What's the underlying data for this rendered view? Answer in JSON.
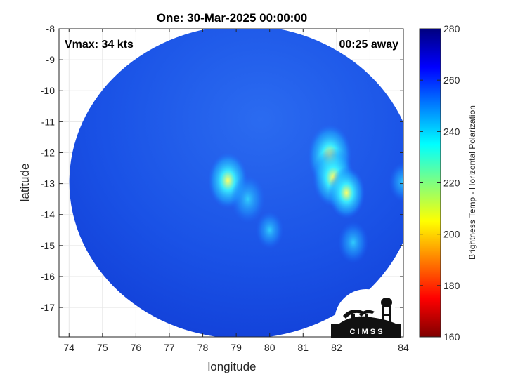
{
  "chart_data": {
    "type": "heatmap",
    "title": "One: 30-Mar-2025 00:00:00",
    "annotations": {
      "vmax": "Vmax: 34 kts",
      "time_away": "00:25 away"
    },
    "xlabel": "longitude",
    "ylabel": "latitude",
    "xlim": [
      73.7,
      84.0
    ],
    "ylim": [
      -17.95,
      -8.0
    ],
    "xticks": [
      "74",
      "75",
      "76",
      "77",
      "78",
      "79",
      "80",
      "81",
      "82",
      "83",
      "84"
    ],
    "yticks": [
      "-8",
      "-9",
      "-10",
      "-11",
      "-12",
      "-13",
      "-14",
      "-15",
      "-16",
      "-17"
    ],
    "grid": true,
    "colorbar": {
      "label": "Brightness Temp - Horizontal Polarization",
      "range": [
        160,
        280
      ],
      "ticks": [
        "160",
        "180",
        "200",
        "220",
        "240",
        "260",
        "280"
      ],
      "colormap": [
        "#7f0000",
        "#ff0000",
        "#ffff00",
        "#00ffff",
        "#0000ff",
        "#00007f"
      ]
    },
    "swath": {
      "center_lon": 79.2,
      "center_lat": -12.95,
      "background_value": 263
    },
    "cold_features": [
      {
        "lon": 78.75,
        "lat": -12.9,
        "value": 222
      },
      {
        "lon": 79.35,
        "lat": -13.5,
        "value": 234
      },
      {
        "lon": 81.8,
        "lat": -12.1,
        "value": 212
      },
      {
        "lon": 81.9,
        "lat": -12.8,
        "value": 218
      },
      {
        "lon": 82.3,
        "lat": -13.3,
        "value": 228
      },
      {
        "lon": 82.5,
        "lat": -14.9,
        "value": 242
      },
      {
        "lon": 80.0,
        "lat": -14.5,
        "value": 248
      },
      {
        "lon": 84.0,
        "lat": -12.95,
        "value": 245
      }
    ],
    "logo": {
      "text": "C I M S S"
    }
  }
}
